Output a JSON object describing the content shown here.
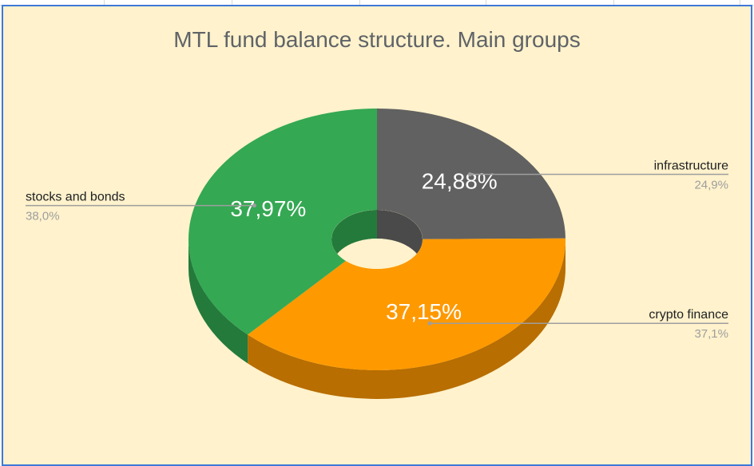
{
  "chart_data": {
    "type": "pie",
    "style": "3d-donut",
    "title": "MTL fund balance structure. Main groups",
    "slices": [
      {
        "label": "infrastructure",
        "value": 24.88,
        "inner_label": "24,88%",
        "outer_label": "24,9%",
        "color": "#616161",
        "side_color": "#4a4a4a"
      },
      {
        "label": "crypto finance",
        "value": 37.15,
        "inner_label": "37,15%",
        "outer_label": "37,1%",
        "color": "#ff9900",
        "side_color": "#b86e00"
      },
      {
        "label": "stocks and bonds",
        "value": 37.97,
        "inner_label": "37,97%",
        "outer_label": "38,0%",
        "color": "#34a853",
        "side_color": "#237a3b"
      }
    ],
    "legend": "callout labels"
  },
  "colors": {
    "background": "#fff2cc",
    "border": "#3d78d8",
    "title": "#5f6368",
    "label": "#202124",
    "sublabel": "#9e9e9e",
    "leader": "#9e9e9e"
  }
}
